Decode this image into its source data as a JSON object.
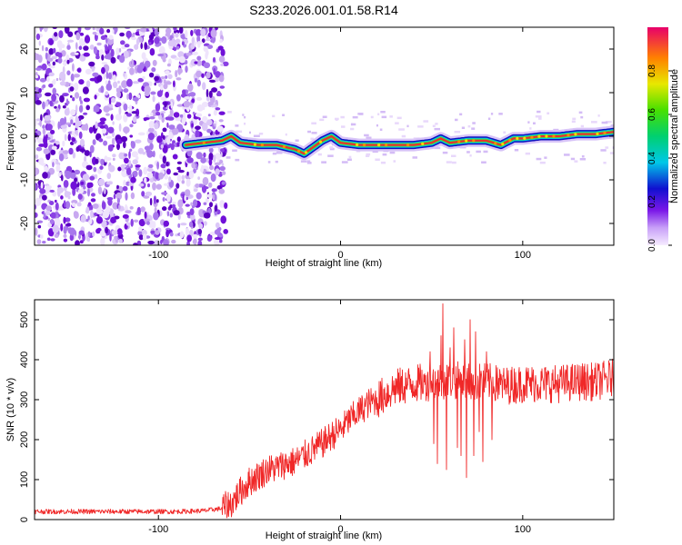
{
  "title": "S233.2026.001.01.58.R14",
  "colors": {
    "snr_line": "#f02828",
    "axis": "#000000",
    "noise_light": "#c8a8f0",
    "noise_dark": "#7010d8",
    "ridge_hot": "#e83030",
    "ridge_edge": "#1010c0"
  },
  "chart_data": [
    {
      "id": "spectrogram",
      "type": "heatmap",
      "xlabel": "Height of straight line (km)",
      "ylabel": "Frequency (Hz)",
      "xlim": [
        -168,
        150
      ],
      "ylim": [
        -25,
        25
      ],
      "xticks": [
        -100,
        0,
        100
      ],
      "xtick_labels": [
        "-100",
        "0",
        "100"
      ],
      "yticks": [
        20,
        10,
        0,
        -10,
        -20
      ],
      "ytick_labels": [
        "20",
        "10",
        "0",
        "-10",
        "-20"
      ],
      "noise_region_km": [
        -168,
        -63
      ],
      "ridge_start_km": -85,
      "ridge": {
        "x": [
          -85,
          -75,
          -65,
          -60,
          -55,
          -45,
          -35,
          -25,
          -20,
          -15,
          -10,
          -5,
          0,
          10,
          20,
          30,
          40,
          50,
          55,
          60,
          70,
          80,
          88,
          95,
          100,
          110,
          120,
          130,
          140,
          150
        ],
        "freq": [
          -2,
          -1.5,
          -1,
          0,
          -1.5,
          -2,
          -2,
          -3,
          -4,
          -2.5,
          -1,
          0,
          -1.5,
          -2,
          -2,
          -2,
          -2,
          -1.5,
          -0.5,
          -1.5,
          -1,
          -1,
          -2,
          -0.5,
          -0.5,
          0,
          0,
          0.5,
          0.5,
          1
        ]
      },
      "colorbar": {
        "label": "Normalized spectral amplitude",
        "range": [
          0,
          1
        ],
        "ticks": [
          0,
          0.2,
          0.4,
          0.6,
          0.8
        ],
        "tick_labels": [
          "0.0",
          "0.2",
          "0.4",
          "0.6",
          "0.8"
        ]
      }
    },
    {
      "id": "snr",
      "type": "line",
      "xlabel": "Height of straight line (km)",
      "ylabel": "SNR (10 * v/v)",
      "xlim": [
        -168,
        150
      ],
      "ylim": [
        0,
        550
      ],
      "xticks": [
        -100,
        0,
        100
      ],
      "xtick_labels": [
        "-100",
        "0",
        "100"
      ],
      "yticks": [
        0,
        100,
        200,
        300,
        400,
        500
      ],
      "ytick_labels": [
        "0",
        "100",
        "200",
        "300",
        "400",
        "500"
      ],
      "envelope": {
        "x": [
          -168,
          -90,
          -75,
          -65,
          -60,
          -55,
          -50,
          -45,
          -40,
          -35,
          -30,
          -25,
          -20,
          -15,
          -10,
          -5,
          0,
          5,
          10,
          15,
          20,
          25,
          30,
          40,
          50,
          60,
          70,
          80,
          90,
          100,
          110,
          120,
          130,
          140,
          150
        ],
        "y": [
          20,
          20,
          22,
          28,
          40,
          70,
          95,
          110,
          125,
          130,
          140,
          145,
          160,
          175,
          190,
          210,
          225,
          250,
          270,
          290,
          300,
          315,
          330,
          340,
          345,
          350,
          345,
          345,
          335,
          340,
          340,
          340,
          345,
          345,
          355
        ]
      },
      "spikes": [
        {
          "x": 46,
          "y": 365
        },
        {
          "x": 49,
          "y": 420
        },
        {
          "x": 51,
          "y": 190
        },
        {
          "x": 53,
          "y": 140
        },
        {
          "x": 55,
          "y": 460
        },
        {
          "x": 56,
          "y": 540
        },
        {
          "x": 58,
          "y": 125
        },
        {
          "x": 60,
          "y": 430
        },
        {
          "x": 62,
          "y": 480
        },
        {
          "x": 64,
          "y": 180
        },
        {
          "x": 66,
          "y": 160
        },
        {
          "x": 68,
          "y": 450
        },
        {
          "x": 69,
          "y": 105
        },
        {
          "x": 71,
          "y": 500
        },
        {
          "x": 73,
          "y": 160
        },
        {
          "x": 74,
          "y": 470
        },
        {
          "x": 76,
          "y": 220
        },
        {
          "x": 78,
          "y": 145
        },
        {
          "x": 80,
          "y": 420
        },
        {
          "x": 83,
          "y": 200
        },
        {
          "x": 86,
          "y": 380
        }
      ]
    }
  ]
}
